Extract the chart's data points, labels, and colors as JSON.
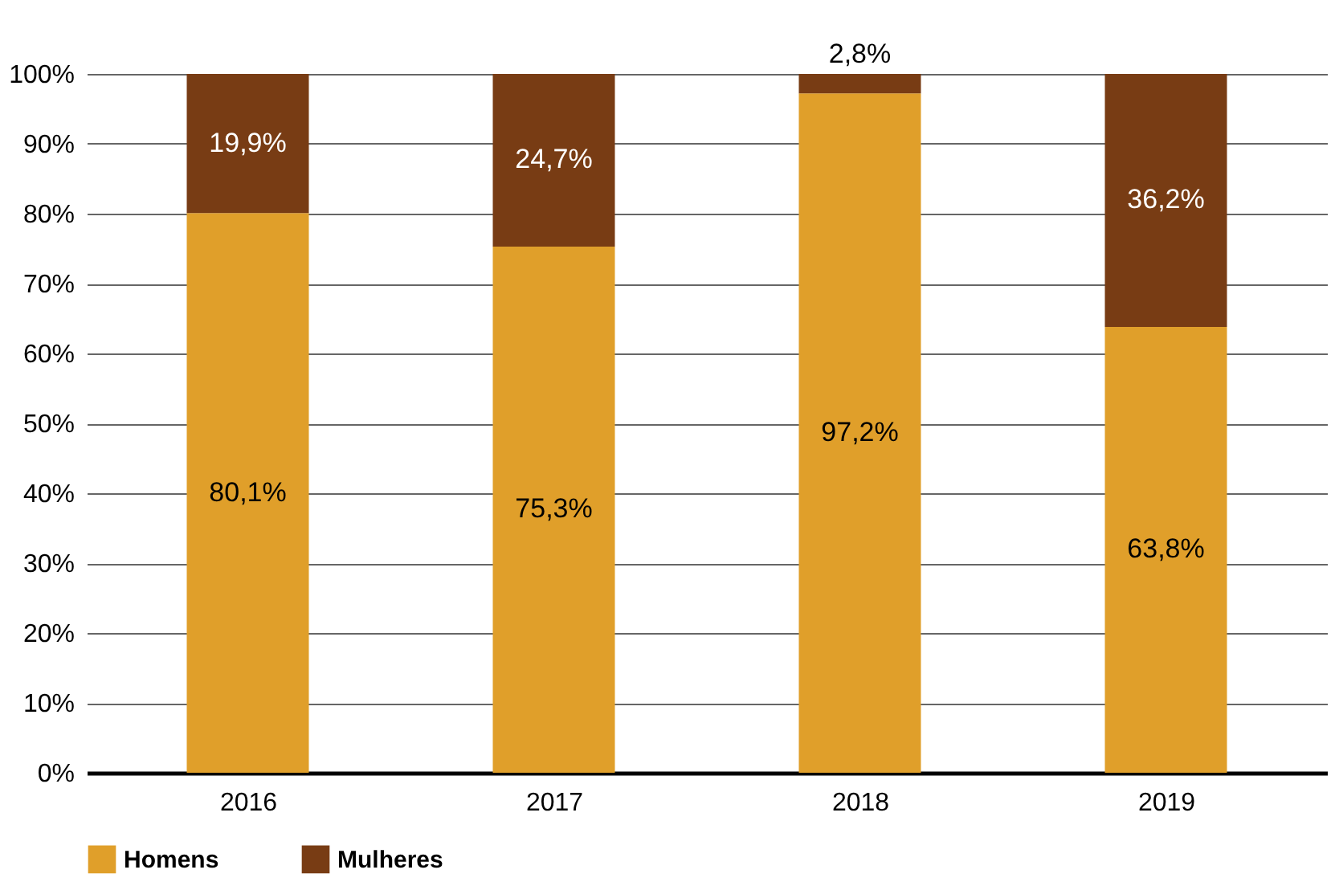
{
  "chart_data": {
    "type": "bar",
    "stacked": true,
    "categories": [
      "2016",
      "2017",
      "2018",
      "2019"
    ],
    "series": [
      {
        "name": "Homens",
        "color": "#e09f2a",
        "values": [
          80.1,
          75.3,
          97.2,
          63.8
        ],
        "value_labels": [
          "80,1%",
          "75,3%",
          "97,2%",
          "63,8%"
        ]
      },
      {
        "name": "Mulheres",
        "color": "#783c14",
        "values": [
          19.9,
          24.7,
          2.8,
          36.2
        ],
        "value_labels": [
          "19,9%",
          "24,7%",
          "2,8%",
          "36,2%"
        ]
      }
    ],
    "ylim": [
      0,
      100
    ],
    "yticks": [
      {
        "value": 0,
        "label": "0%"
      },
      {
        "value": 10,
        "label": "10%"
      },
      {
        "value": 20,
        "label": "20%"
      },
      {
        "value": 30,
        "label": "30%"
      },
      {
        "value": 40,
        "label": "40%"
      },
      {
        "value": 50,
        "label": "50%"
      },
      {
        "value": 60,
        "label": "60%"
      },
      {
        "value": 70,
        "label": "70%"
      },
      {
        "value": 80,
        "label": "80%"
      },
      {
        "value": 90,
        "label": "90%"
      },
      {
        "value": 100,
        "label": "100%"
      }
    ],
    "grid": "y",
    "legend": "bottom"
  }
}
